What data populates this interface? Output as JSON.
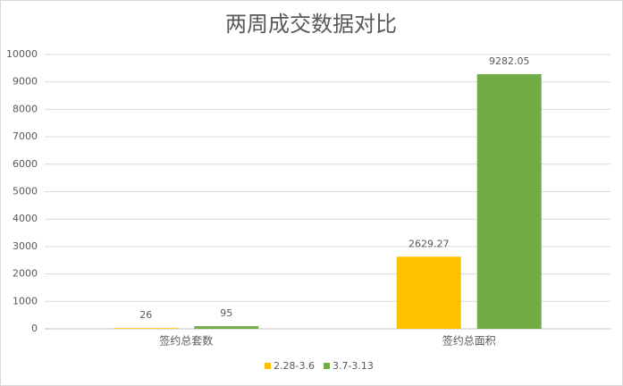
{
  "chart_data": {
    "type": "bar",
    "title": "两周成交数据对比",
    "categories": [
      "签约总套数",
      "签约总面积"
    ],
    "series": [
      {
        "name": "2.28-3.6",
        "color": "#FFC000",
        "values": [
          26,
          2629.27
        ]
      },
      {
        "name": "3.7-3.13",
        "color": "#70AD47",
        "values": [
          95,
          9282.05
        ]
      }
    ],
    "ylim": [
      0,
      10000
    ],
    "yticks": [
      0,
      1000,
      2000,
      3000,
      4000,
      5000,
      6000,
      7000,
      8000,
      9000,
      10000
    ],
    "grid": true,
    "legend": "bottom"
  }
}
